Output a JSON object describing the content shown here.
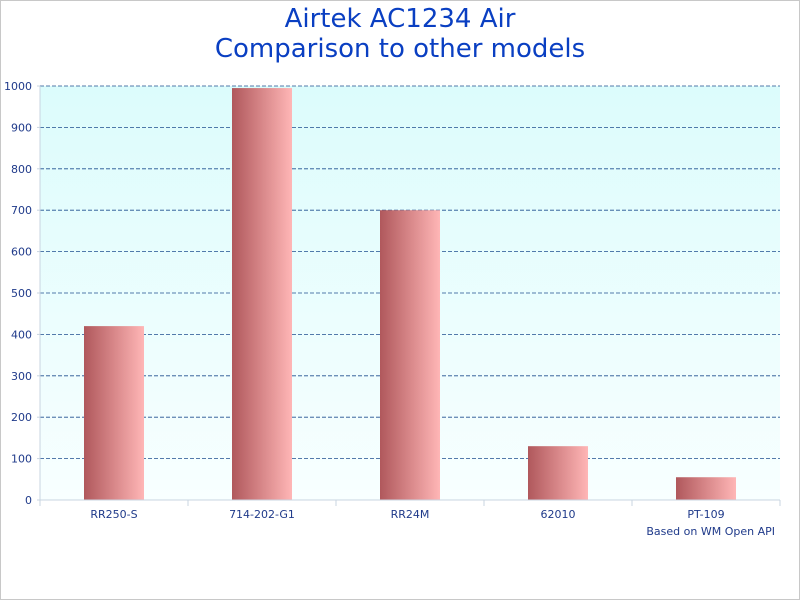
{
  "colors": {
    "title": "#0a3fc2",
    "axis_text": "#1f3a8a",
    "grid": "#1f4f8f",
    "plot_top": "#dcfcfc",
    "plot_bottom": "#f8ffff",
    "bar_dark": "#b0585c",
    "bar_light": "#ffb6b6"
  },
  "chart_data": {
    "type": "bar",
    "title": [
      "Airtek AC1234 Air",
      "Comparison to other models"
    ],
    "categories": [
      "RR250-S",
      "714-202-G1",
      "RR24M",
      "62010",
      "PT-109"
    ],
    "values": [
      420,
      995,
      700,
      130,
      55
    ],
    "ylim": [
      0,
      1000
    ],
    "yticks": [
      0,
      100,
      200,
      300,
      400,
      500,
      600,
      700,
      800,
      900,
      1000
    ],
    "grid": true,
    "legend": "none",
    "footnote": "Based on WM Open API"
  }
}
